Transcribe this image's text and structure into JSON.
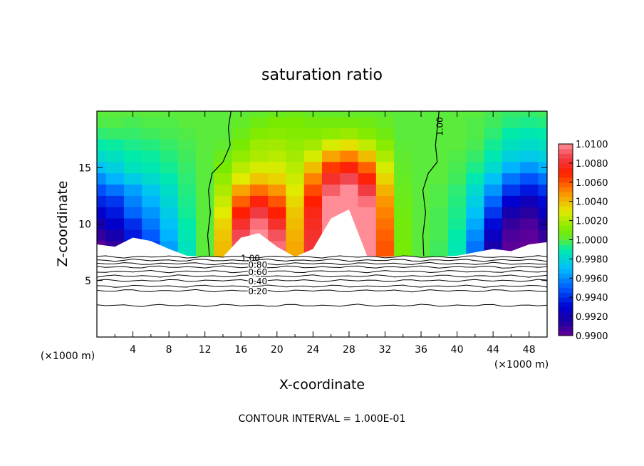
{
  "chart_data": {
    "type": "heatmap",
    "title": "saturation ratio",
    "xlabel": "X-coordinate",
    "ylabel": "Z-coordinate",
    "x_unit": "(×1000 m)",
    "xlim": [
      0,
      50
    ],
    "ylim": [
      0,
      20
    ],
    "xticks": [
      "4",
      "8",
      "12",
      "16",
      "20",
      "24",
      "28",
      "32",
      "36",
      "40",
      "44",
      "48"
    ],
    "yticks": [
      "5",
      "10",
      "15"
    ],
    "footer": "CONTOUR INTERVAL = 1.000E-01",
    "colorbar": {
      "labels": [
        "1.0100",
        "1.0080",
        "1.0060",
        "1.0040",
        "1.0020",
        "1.0000",
        "0.9980",
        "0.9960",
        "0.9940",
        "0.9920",
        "0.9900"
      ],
      "min": 0.99,
      "max": 1.01
    },
    "contour_labels": [
      "1.00",
      "1.00",
      "0.80",
      "0.60",
      "0.40",
      "0.20"
    ],
    "contour_levels_below": [
      {
        "level": 1.0,
        "z": 7.1
      },
      {
        "level": 0.9,
        "z": 6.8
      },
      {
        "level": 0.8,
        "z": 6.5
      },
      {
        "level": 0.7,
        "z": 6.2
      },
      {
        "level": 0.6,
        "z": 5.8
      },
      {
        "level": 0.5,
        "z": 5.4
      },
      {
        "level": 0.4,
        "z": 5.0
      },
      {
        "level": 0.3,
        "z": 4.5
      },
      {
        "level": 0.2,
        "z": 4.1
      },
      {
        "level": 0.1,
        "z": 2.8
      }
    ],
    "series": [
      {
        "x": [
          0,
          2,
          4,
          6,
          8,
          10,
          12,
          14,
          16,
          18,
          20,
          22,
          24,
          26,
          28,
          30,
          32,
          34,
          36,
          38,
          40,
          42,
          44,
          46,
          48,
          50
        ],
        "z": [
          20,
          19,
          18,
          17,
          16,
          15,
          14,
          13,
          12,
          11,
          10,
          9,
          8
        ],
        "values": [
          [
            1.0,
            1.0,
            1.0,
            1.0,
            1.0,
            1.0,
            1.0,
            1.0,
            1.0001,
            1.0003,
            1.0005,
            1.0006,
            1.0004,
            1.0003,
            1.0003,
            1.0003,
            1.0002,
            1.0,
            1.0,
            1.0,
            1.0,
            1.0,
            0.9998,
            0.9996,
            0.9996,
            0.9997
          ],
          [
            0.9999,
            0.9999,
            0.9998,
            0.9999,
            0.9999,
            1.0,
            1.0,
            1.0,
            1.0003,
            1.0007,
            1.001,
            1.001,
            1.0008,
            1.0008,
            1.0008,
            1.0007,
            1.0004,
            1.0,
            1.0,
            1.0,
            1.0,
            0.9999,
            0.9997,
            0.9994,
            0.9993,
            0.9994
          ],
          [
            0.9995,
            0.9996,
            0.9996,
            0.9997,
            0.9998,
            0.9999,
            1.0,
            1.0,
            1.0006,
            1.0012,
            1.0013,
            1.0012,
            1.0012,
            1.0014,
            1.0016,
            1.0012,
            1.0007,
            1.0,
            1.0,
            1.0,
            1.0,
            0.9999,
            0.9995,
            0.999,
            0.9988,
            0.999
          ],
          [
            0.999,
            0.9991,
            0.9993,
            0.9994,
            0.9996,
            0.9998,
            1.0,
            1.0002,
            1.001,
            1.0017,
            1.0018,
            1.0015,
            1.0018,
            1.0028,
            1.0032,
            1.0024,
            1.0013,
            1.0001,
            1.0,
            1.0,
            1.0,
            0.9998,
            0.9992,
            0.9985,
            0.9983,
            0.9985
          ],
          [
            0.9982,
            0.9985,
            0.999,
            0.9991,
            0.9994,
            0.9997,
            1.0,
            1.0006,
            1.0015,
            1.002,
            1.0022,
            1.0018,
            1.0028,
            1.0045,
            1.0052,
            1.004,
            1.002,
            1.0002,
            1.0,
            1.0,
            0.9999,
            0.9996,
            0.9988,
            0.9978,
            0.9975,
            0.9978
          ],
          [
            0.9972,
            0.9978,
            0.9986,
            0.9988,
            0.9992,
            0.9996,
            1.0,
            1.001,
            1.0022,
            1.0028,
            1.0028,
            1.0022,
            1.004,
            1.0065,
            1.0072,
            1.0058,
            1.0028,
            1.0003,
            1.0,
            1.0,
            0.9998,
            0.9993,
            0.9982,
            0.9968,
            0.9962,
            0.9968
          ],
          [
            0.996,
            0.9968,
            0.9976,
            0.9982,
            0.9988,
            0.9995,
            1.0,
            1.0015,
            1.003,
            1.0038,
            1.0035,
            1.0026,
            1.0052,
            1.008,
            1.0088,
            1.0072,
            1.0035,
            1.0004,
            1.0,
            1.0,
            0.9997,
            0.9988,
            0.9972,
            0.9955,
            0.9948,
            0.9955
          ],
          [
            0.9948,
            0.9955,
            0.9964,
            0.9974,
            0.9984,
            0.9994,
            1.0,
            1.002,
            1.0045,
            1.0055,
            1.0048,
            1.003,
            1.0062,
            1.0092,
            1.01,
            1.0085,
            1.0042,
            1.0005,
            1.0,
            0.9999,
            0.9995,
            0.9982,
            0.9962,
            0.9942,
            0.9935,
            0.9942
          ],
          [
            0.9938,
            0.9942,
            0.9958,
            0.9968,
            0.998,
            0.9993,
            1.0,
            1.0025,
            1.0058,
            1.0072,
            1.006,
            1.0034,
            1.007,
            1.01,
            1.01,
            1.0095,
            1.0048,
            1.0006,
            1.0,
            0.9999,
            0.9994,
            0.9977,
            0.9952,
            0.993,
            0.9922,
            0.9932
          ],
          [
            0.9928,
            0.9935,
            0.9952,
            0.9962,
            0.9976,
            0.9992,
            1.0,
            1.003,
            1.007,
            1.0085,
            1.007,
            1.0038,
            1.0075,
            1.01,
            1.01,
            1.01,
            1.0052,
            1.0007,
            1.0,
            0.9998,
            0.9993,
            0.9972,
            0.9942,
            0.9918,
            0.9912,
            0.9925
          ],
          [
            0.9918,
            0.9928,
            0.994,
            0.9956,
            0.9972,
            0.999,
            1.0,
            1.0035,
            1.008,
            1.0095,
            1.008,
            1.004,
            1.0078,
            1.01,
            1.01,
            1.01,
            1.0055,
            1.0008,
            1.0,
            0.9998,
            0.9992,
            0.9966,
            0.9932,
            0.991,
            0.9905,
            0.9915
          ],
          [
            0.991,
            0.9918,
            0.9935,
            0.995,
            0.9968,
            0.9988,
            1.0,
            1.0038,
            1.0088,
            1.01,
            1.009,
            1.0042,
            1.008,
            1.01,
            1.01,
            1.01,
            1.0058,
            1.0008,
            1.0,
            0.9998,
            0.999,
            0.996,
            0.9925,
            0.9905,
            0.9902,
            0.991
          ],
          [
            0.9902,
            0.991,
            0.9928,
            0.9944,
            0.9964,
            0.9986,
            1.0,
            1.004,
            1.009,
            1.01,
            1.0095,
            1.0044,
            1.0082,
            1.01,
            1.01,
            1.01,
            1.006,
            1.0009,
            1.0,
            0.9997,
            0.9988,
            0.9955,
            0.9918,
            0.9902,
            0.99,
            0.9905
          ]
        ],
        "cloud_base_z": [
          8.2,
          8.0,
          8.8,
          8.5,
          7.8,
          7.2,
          7.1,
          7.1,
          8.8,
          9.2,
          8.0,
          7.1,
          7.8,
          10.5,
          11.3,
          7.2,
          7.1,
          7.2,
          7.1,
          7.1,
          7.2,
          7.5,
          7.8,
          7.6,
          8.2,
          8.4
        ]
      }
    ]
  }
}
